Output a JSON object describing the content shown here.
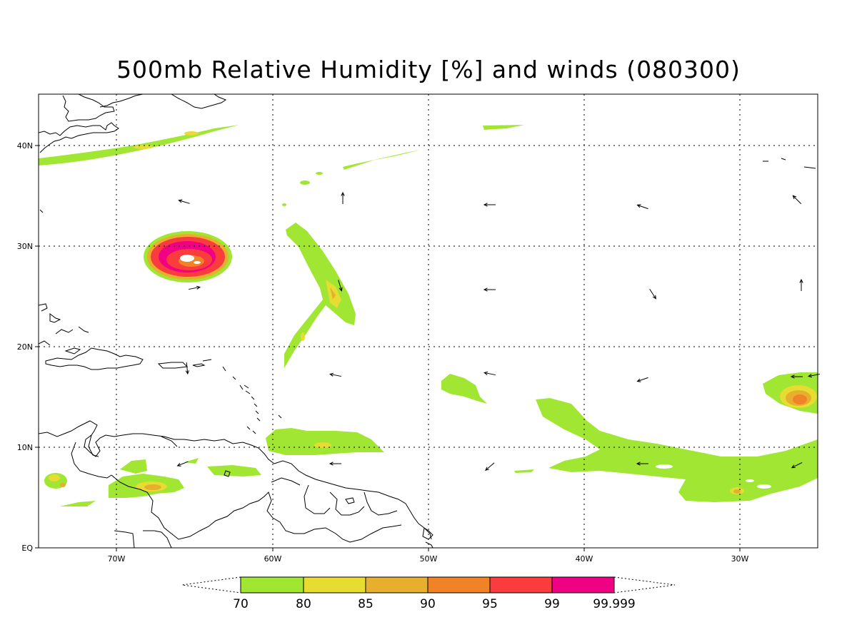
{
  "title": "500mb Relative Humidity [%] and winds (080300)",
  "colors": {
    "rh70": "#a0e632",
    "rh80": "#e6dc32",
    "rh85": "#e6af2d",
    "rh90": "#f08228",
    "rh95": "#fa3c3c",
    "rh99": "#f00082",
    "coast": "#000000",
    "grid": "#000000"
  },
  "axes": {
    "lon_labels": [
      "70W",
      "60W",
      "50W",
      "40W",
      "30W"
    ],
    "lat_labels": [
      "EQ",
      "10N",
      "20N",
      "30N",
      "40N"
    ]
  },
  "colorbar": {
    "labels": [
      "70",
      "80",
      "85",
      "90",
      "95",
      "99",
      "99.999"
    ],
    "colors": [
      "#a0e632",
      "#e6dc32",
      "#e6af2d",
      "#f08228",
      "#fa3c3c",
      "#f00082"
    ]
  }
}
